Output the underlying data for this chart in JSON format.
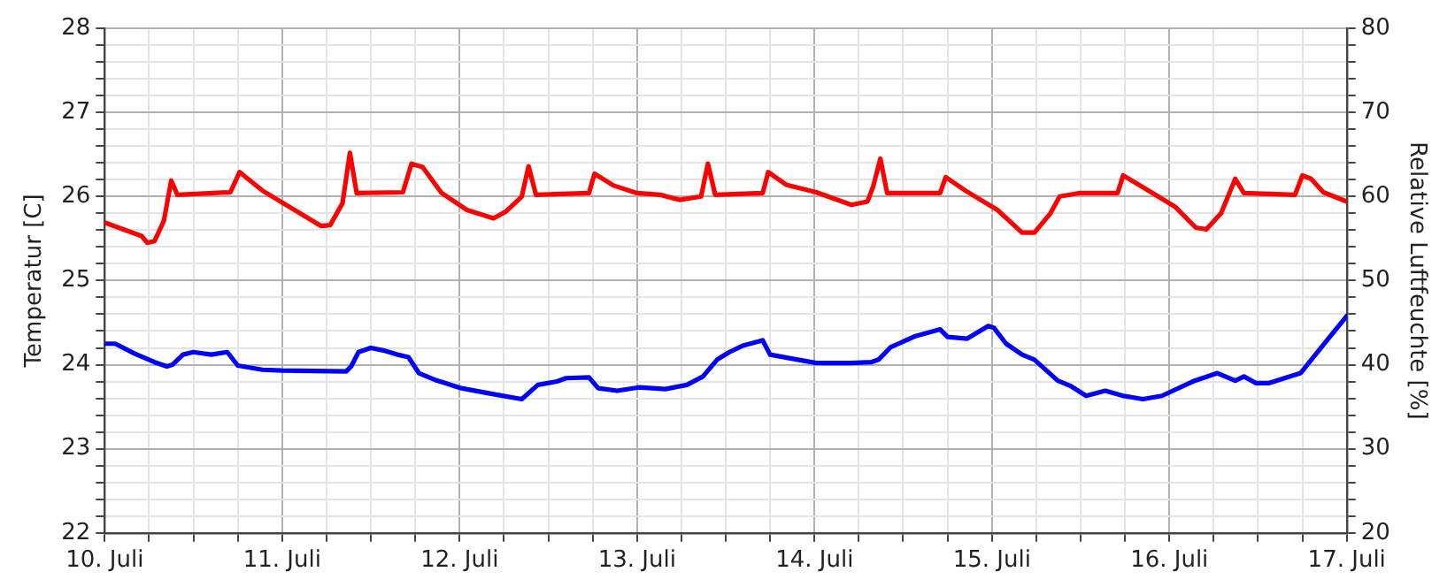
{
  "chart_data": {
    "type": "line",
    "ylabel": "Temperatur [C]",
    "y2label": "Relative Luftfeuchte [%]",
    "xlim": [
      "--07-10",
      "--07-17"
    ],
    "xticks": [
      {
        "value": "--07-10",
        "label": "10. Juli"
      },
      {
        "value": "--07-10T06:00",
        "label": null
      },
      {
        "value": "--07-10T12:00",
        "label": null
      },
      {
        "value": "--07-10T18:00",
        "label": null
      },
      {
        "value": "--07-11",
        "label": "11. Juli"
      },
      {
        "value": "--07-11T06:00",
        "label": null
      },
      {
        "value": "--07-11T12:00",
        "label": null
      },
      {
        "value": "--07-11T18:00",
        "label": null
      },
      {
        "value": "--07-12",
        "label": "12. Juli"
      },
      {
        "value": "--07-12T06:00",
        "label": null
      },
      {
        "value": "--07-12T12:00",
        "label": null
      },
      {
        "value": "--07-12T18:00",
        "label": null
      },
      {
        "value": "--07-13",
        "label": "13. Juli"
      },
      {
        "value": "--07-13T06:00",
        "label": null
      },
      {
        "value": "--07-13T12:00",
        "label": null
      },
      {
        "value": "--07-13T18:00",
        "label": null
      },
      {
        "value": "--07-14",
        "label": "14. Juli"
      },
      {
        "value": "--07-14T06:00",
        "label": null
      },
      {
        "value": "--07-14T12:00",
        "label": null
      },
      {
        "value": "--07-14T18:00",
        "label": null
      },
      {
        "value": "--07-15",
        "label": "15. Juli"
      },
      {
        "value": "--07-15T06:00",
        "label": null
      },
      {
        "value": "--07-15T12:00",
        "label": null
      },
      {
        "value": "--07-15T18:00",
        "label": null
      },
      {
        "value": "--07-16",
        "label": "16. Juli"
      },
      {
        "value": "--07-16T06:00",
        "label": null
      },
      {
        "value": "--07-16T12:00",
        "label": null
      },
      {
        "value": "--07-16T18:00",
        "label": null
      },
      {
        "value": "--07-17",
        "label": "17. Juli"
      }
    ],
    "ylim": [
      22,
      28
    ],
    "yticks": [
      22,
      {
        "value": 22.2,
        "label": null
      },
      {
        "value": 22.4,
        "label": null
      },
      {
        "value": 22.6,
        "label": null
      },
      {
        "value": 22.8,
        "label": null
      },
      23,
      {
        "value": 23.2,
        "label": null
      },
      {
        "value": 23.4,
        "label": null
      },
      {
        "value": 23.6,
        "label": null
      },
      {
        "value": 23.8,
        "label": null
      },
      24,
      {
        "value": 24.2,
        "label": null
      },
      {
        "value": 24.4,
        "label": null
      },
      {
        "value": 24.6,
        "label": null
      },
      {
        "value": 24.8,
        "label": null
      },
      25,
      {
        "value": 25.2,
        "label": null
      },
      {
        "value": 25.4,
        "label": null
      },
      {
        "value": 25.6,
        "label": null
      },
      {
        "value": 25.8,
        "label": null
      },
      26,
      {
        "value": 26.2,
        "label": null
      },
      {
        "value": 26.4,
        "label": null
      },
      {
        "value": 26.6,
        "label": null
      },
      {
        "value": 26.8,
        "label": null
      },
      27,
      {
        "value": 27.2,
        "label": null
      },
      {
        "value": 27.4,
        "label": null
      },
      {
        "value": 27.6,
        "label": null
      },
      {
        "value": 27.8,
        "label": null
      },
      28
    ],
    "y2lim": [
      20,
      80
    ],
    "y2ticks": [
      20,
      {
        "value": 22,
        "label": null
      },
      {
        "value": 24,
        "label": null
      },
      {
        "value": 26,
        "label": null
      },
      {
        "value": 28,
        "label": null
      },
      30,
      {
        "value": 32,
        "label": null
      },
      {
        "value": 34,
        "label": null
      },
      {
        "value": 36,
        "label": null
      },
      {
        "value": 38,
        "label": null
      },
      40,
      {
        "value": 42,
        "label": null
      },
      {
        "value": 44,
        "label": null
      },
      {
        "value": 46,
        "label": null
      },
      {
        "value": 48,
        "label": null
      },
      50,
      {
        "value": 52,
        "label": null
      },
      {
        "value": 54,
        "label": null
      },
      {
        "value": 56,
        "label": null
      },
      {
        "value": 58,
        "label": null
      },
      60,
      {
        "value": 62,
        "label": null
      },
      {
        "value": 64,
        "label": null
      },
      {
        "value": 66,
        "label": null
      },
      {
        "value": 68,
        "label": null
      },
      70,
      {
        "value": 72,
        "label": null
      },
      {
        "value": 74,
        "label": null
      },
      {
        "value": 76,
        "label": null
      },
      {
        "value": 78,
        "label": null
      },
      80
    ],
    "grid": true,
    "legend": false,
    "marker": "none",
    "line_style": "solid",
    "series": [
      {
        "color": "#ff0000",
        "x": [
          "--07-10T00:00",
          "--07-10T05:00",
          "--07-10T05:45",
          "--07-10T06:45",
          "--07-10T08:00",
          "--07-10T09:00",
          "--07-10T09:50",
          "--07-10T17:00",
          "--07-10T18:15",
          "--07-10T21:20",
          "--07-11T05:15",
          "--07-11T06:30",
          "--07-11T08:10",
          "--07-11T09:10",
          "--07-11T10:05",
          "--07-11T16:20",
          "--07-11T17:30",
          "--07-11T19:00",
          "--07-11T21:35",
          "--07-12T01:00",
          "--07-12T04:35",
          "--07-12T06:15",
          "--07-12T08:25",
          "--07-12T09:20",
          "--07-12T10:20",
          "--07-12T17:30",
          "--07-12T18:15",
          "--07-12T20:50",
          "--07-13T00:00",
          "--07-13T03:10",
          "--07-13T05:45",
          "--07-13T08:40",
          "--07-13T09:35",
          "--07-13T10:35",
          "--07-13T17:00",
          "--07-13T17:45",
          "--07-13T20:10",
          "--07-14T00:15",
          "--07-14T05:00",
          "--07-14T07:10",
          "--07-14T07:55",
          "--07-14T08:55",
          "--07-14T09:50",
          "--07-14T17:00",
          "--07-14T17:45",
          "--07-14T20:25",
          "--07-15T00:45",
          "--07-15T04:05",
          "--07-15T05:45",
          "--07-15T07:55",
          "--07-15T09:10",
          "--07-15T11:45",
          "--07-15T17:00",
          "--07-15T17:45",
          "--07-15T20:25",
          "--07-16T00:45",
          "--07-16T03:35",
          "--07-16T05:00",
          "--07-16T07:00",
          "--07-16T08:55",
          "--07-16T10:05",
          "--07-16T17:00",
          "--07-16T18:00",
          "--07-16T19:10",
          "--07-16T20:50",
          "--07-17T00:00"
        ],
        "values": [
          25.69,
          25.53,
          25.45,
          25.47,
          25.71,
          26.19,
          26.02,
          26.05,
          26.29,
          26.07,
          25.65,
          25.66,
          25.92,
          26.52,
          26.04,
          26.05,
          26.39,
          26.35,
          26.04,
          25.84,
          25.74,
          25.82,
          26,
          26.36,
          26.02,
          26.04,
          26.27,
          26.13,
          26.04,
          26.02,
          25.96,
          26,
          26.39,
          26.02,
          26.04,
          26.29,
          26.14,
          26.05,
          25.9,
          25.94,
          26.11,
          26.45,
          26.04,
          26.04,
          26.23,
          26.07,
          25.84,
          25.57,
          25.57,
          25.8,
          26,
          26.04,
          26.04,
          26.25,
          26.11,
          25.88,
          25.63,
          25.61,
          25.8,
          26.21,
          26.04,
          26.02,
          26.25,
          26.21,
          26.05,
          25.94
        ]
      },
      {
        "color": "#0000ff",
        "axis": "y2",
        "x": [
          "--07-10T00:00",
          "--07-10T01:25",
          "--07-10T04:05",
          "--07-10T06:45",
          "--07-10T08:25",
          "--07-10T09:10",
          "--07-10T10:35",
          "--07-10T12:00",
          "--07-10T14:25",
          "--07-10T16:35",
          "--07-10T18:00",
          "--07-10T21:20",
          "--07-11T00:00",
          "--07-11T08:40",
          "--07-11T09:20",
          "--07-11T10:20",
          "--07-11T12:00",
          "--07-11T13:40",
          "--07-11T15:35",
          "--07-11T17:05",
          "--07-11T18:30",
          "--07-11T20:40",
          "--07-12T00:15",
          "--07-12T04:35",
          "--07-12T08:25",
          "--07-12T10:35",
          "--07-12T13:10",
          "--07-12T14:25",
          "--07-12T17:30",
          "--07-12T18:45",
          "--07-12T21:20",
          "--07-13T00:15",
          "--07-13T03:50",
          "--07-13T06:45",
          "--07-13T08:55",
          "--07-13T10:50",
          "--07-13T12:30",
          "--07-13T14:25",
          "--07-13T17:00",
          "--07-13T18:00",
          "--07-13T20:25",
          "--07-14T00:15",
          "--07-14T05:00",
          "--07-14T07:40",
          "--07-14T08:40",
          "--07-14T10:20",
          "--07-14T13:40",
          "--07-14T17:00",
          "--07-14T18:00",
          "--07-14T20:40",
          "--07-14T23:30",
          "--07-15T00:15",
          "--07-15T01:55",
          "--07-15T04:05",
          "--07-15T05:45",
          "--07-15T08:55",
          "--07-15T10:35",
          "--07-15T12:45",
          "--07-15T15:20",
          "--07-15T17:45",
          "--07-15T20:25",
          "--07-15T23:00",
          "--07-16T03:10",
          "--07-16T06:30",
          "--07-16T08:55",
          "--07-16T10:05",
          "--07-16T11:45",
          "--07-16T13:25",
          "--07-16T17:45",
          "--07-16T21:20",
          "--07-17T00:00"
        ],
        "values": [
          42.5,
          42.5,
          41.3,
          40.3,
          39.8,
          40,
          41.2,
          41.5,
          41.2,
          41.5,
          39.9,
          39.4,
          39.3,
          39.2,
          39.8,
          41.5,
          42,
          41.7,
          41.2,
          40.9,
          39,
          38.2,
          37.2,
          36.5,
          35.9,
          37.6,
          38,
          38.4,
          38.5,
          37.2,
          36.9,
          37.3,
          37.1,
          37.6,
          38.6,
          40.6,
          41.5,
          42.3,
          42.9,
          41.2,
          40.8,
          40.2,
          40.2,
          40.3,
          40.6,
          42.1,
          43.4,
          44.2,
          43.3,
          43.1,
          44.6,
          44.4,
          42.5,
          41.2,
          40.6,
          38.1,
          37.5,
          36.3,
          36.9,
          36.3,
          35.9,
          36.3,
          38,
          39,
          38.1,
          38.6,
          37.8,
          37.8,
          39,
          42.9,
          45.8
        ]
      }
    ]
  }
}
